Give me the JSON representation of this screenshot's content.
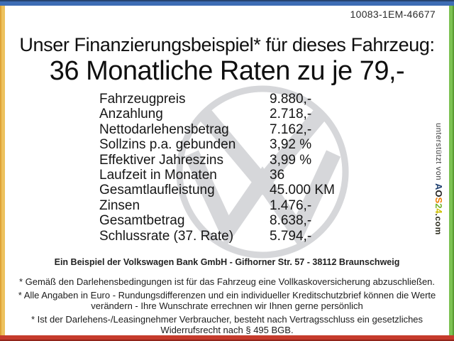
{
  "frame": {
    "top_color": "#3e6db5",
    "left_color": "#edc25e",
    "right_color": "#7dc253",
    "bottom_color": "#c53b2c"
  },
  "header": {
    "document_id": "10083-1EM-46677",
    "title": "Unser Finanzierungsbeispiel* für dieses Fahrzeug:",
    "subtitle": "36 Monatliche Raten zu je 79,-"
  },
  "table": {
    "rows": [
      {
        "label": "Fahrzeugpreis",
        "value": "9.880,-"
      },
      {
        "label": "Anzahlung",
        "value": "2.718,-"
      },
      {
        "label": "Nettodarlehensbetrag",
        "value": "7.162,-"
      },
      {
        "label": "Sollzins p.a. gebunden",
        "value": "3,92 %"
      },
      {
        "label": "Effektiver Jahreszins",
        "value": "3,99 %"
      },
      {
        "label": "Laufzeit in Monaten",
        "value": "36"
      },
      {
        "label": "Gesamtlaufleistung",
        "value": "45.000 KM"
      },
      {
        "label": "Zinsen",
        "value": "1.476,-"
      },
      {
        "label": "Gesamtbetrag",
        "value": "8.638,-"
      },
      {
        "label": "Schlussrate (37. Rate)",
        "value": "5.794,-"
      }
    ]
  },
  "watermark": {
    "icon": "vw-logo",
    "color": "#d6d7da"
  },
  "sidebar": {
    "prefix": "unterstützt von ",
    "brand_letters": [
      {
        "char": "A",
        "color": "#1d3e6f"
      },
      {
        "char": "O",
        "color": "#1f1f1d"
      },
      {
        "char": "S",
        "color": "#ee7d00"
      },
      {
        "char": "2",
        "color": "#74b52c"
      },
      {
        "char": "4",
        "color": "#cdbf00"
      }
    ],
    "suffix": ".com"
  },
  "footer": {
    "bank_line": "Ein Beispiel der Volkswagen Bank GmbH - Gifhorner Str. 57 - 38112 Braunschweig",
    "notes": [
      [
        "* Gemäß den Darlehensbedingungen ist für das Fahrzeug eine Vollkaskoversicherung abzuschließen."
      ],
      [
        "* Alle Angaben in Euro - Rundungsdifferenzen und ein individueller Kreditschutzbrief können die Werte",
        "verändern - Ihre Wunschrate errechnen wir Ihnen gerne persönlich"
      ],
      [
        "* Ist der Darlehens-/Leasingnehmer Verbraucher, besteht nach Vertragsschluss ein gesetzliches",
        "Widerrufsrecht nach § 495 BGB."
      ]
    ]
  }
}
